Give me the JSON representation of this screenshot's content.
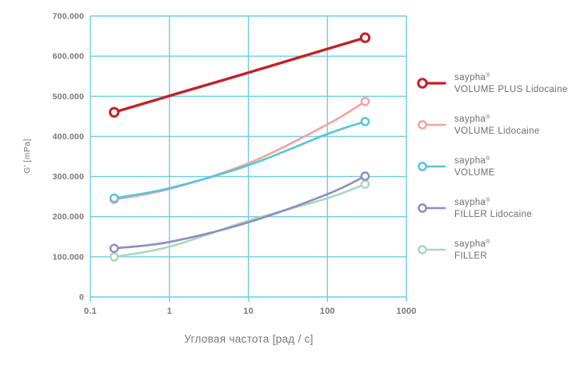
{
  "chart_data": {
    "type": "line",
    "title": "",
    "xlabel": "Угловая частота [рад / с]",
    "ylabel": "G' [mPa]",
    "x_scale": "log",
    "grid": true,
    "grid_color": "#6ecde6",
    "tick_text_color": "#77787b",
    "legend_text_color": "#6d6e71",
    "legend_position": "right",
    "xlim": [
      0.1,
      1000
    ],
    "ylim": [
      0,
      700000
    ],
    "x_ticks": [
      "0.1",
      "1",
      "10",
      "100",
      "1000"
    ],
    "x_tick_values": [
      0.1,
      1,
      10,
      100,
      1000
    ],
    "y_ticks": [
      "700.000",
      "600.000",
      "500.000",
      "400.000",
      "300.000",
      "200.000",
      "100.000",
      "0"
    ],
    "y_tick_values": [
      700000,
      600000,
      500000,
      400000,
      300000,
      200000,
      100000,
      0
    ],
    "x": [
      0.2,
      1,
      10,
      100,
      300
    ],
    "series": [
      {
        "slug": "volume-plus-lidocaine",
        "brand": "saypha",
        "reg": "®",
        "label": "VOLUME PLUS Lidocaine",
        "color": "#c32127",
        "line_width": 3.4,
        "values": [
          460000,
          501000,
          559000,
          618000,
          646000
        ]
      },
      {
        "slug": "volume-lidocaine",
        "brand": "saypha",
        "reg": "®",
        "label": "VOLUME Lidocaine",
        "color": "#f3a3a0",
        "line_width": 2.6,
        "values": [
          243000,
          269000,
          333000,
          430000,
          487000
        ]
      },
      {
        "slug": "volume",
        "brand": "saypha",
        "reg": "®",
        "label": "VOLUME",
        "color": "#56c5d8",
        "line_width": 2.6,
        "values": [
          246000,
          271000,
          328000,
          406000,
          437000
        ]
      },
      {
        "slug": "filler-lidocaine",
        "brand": "saypha",
        "reg": "®",
        "label": "FILLER Lidocaine",
        "color": "#8f8cc4",
        "line_width": 2.6,
        "values": [
          121000,
          137000,
          186000,
          256000,
          301000
        ]
      },
      {
        "slug": "filler",
        "brand": "saypha",
        "reg": "®",
        "label": "FILLER",
        "color": "#a8d8bc",
        "line_width": 2.6,
        "values": [
          100000,
          125000,
          190000,
          246000,
          281000
        ]
      }
    ]
  }
}
